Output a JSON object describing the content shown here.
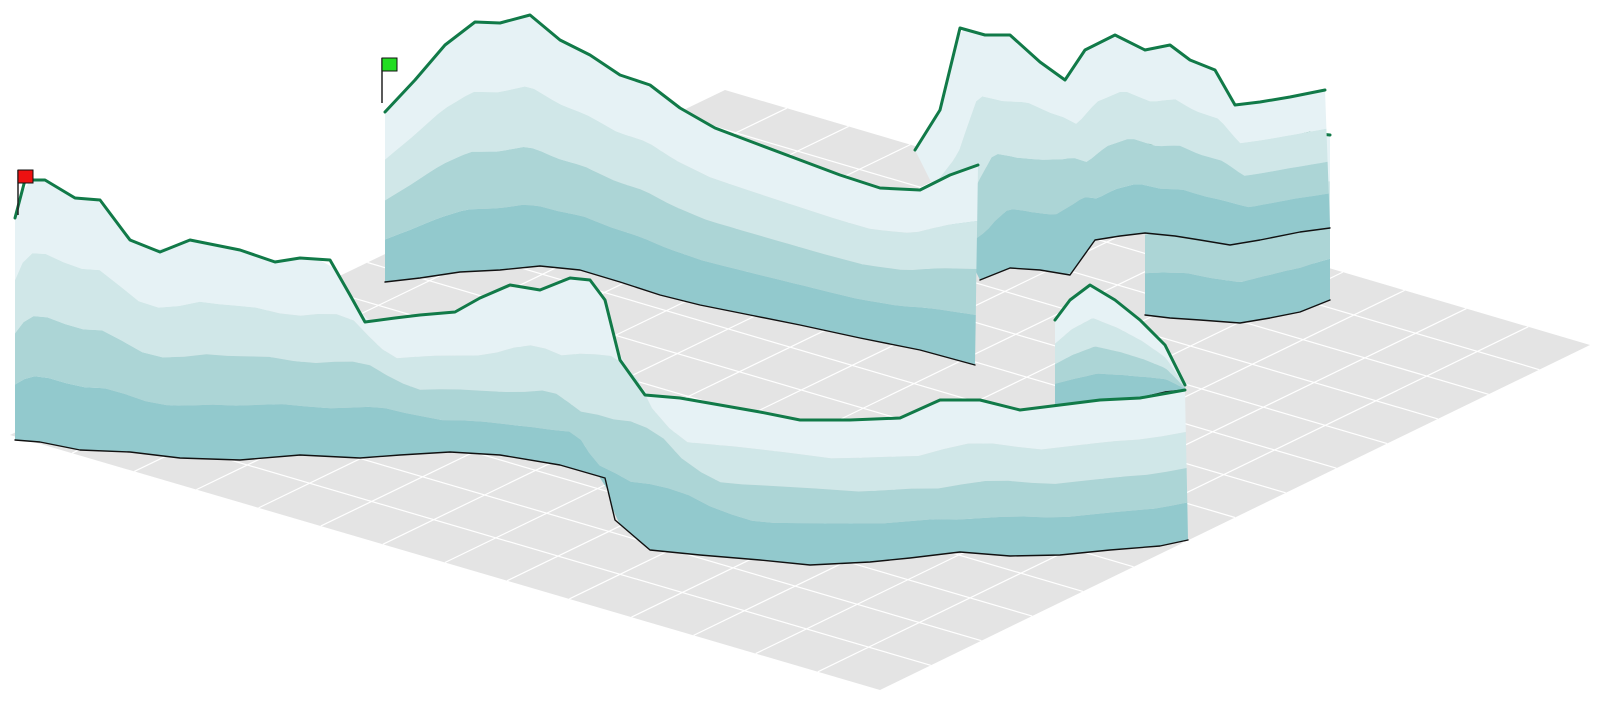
{
  "colors": {
    "background": "#ffffff",
    "ground_fill": "#e4e4e4",
    "ground_grid": "#ffffff",
    "band_1_top": "#e6f2f5",
    "band_2": "#d0e7e8",
    "band_3": "#acd5d6",
    "band_4_bottom": "#92c9cd",
    "track_line": "#117a48",
    "base_line": "#111111",
    "start_flag": "#22dd22",
    "finish_flag": "#ee1111",
    "flag_pole": "#222222"
  },
  "flags": {
    "start": {
      "icon": "start-flag-icon",
      "color": "#22dd22"
    },
    "finish": {
      "icon": "finish-flag-icon",
      "color": "#ee1111"
    }
  },
  "elevation_bands": {
    "count": 4,
    "colors": [
      "#e6f2f5",
      "#d0e7e8",
      "#acd5d6",
      "#92c9cd"
    ]
  }
}
